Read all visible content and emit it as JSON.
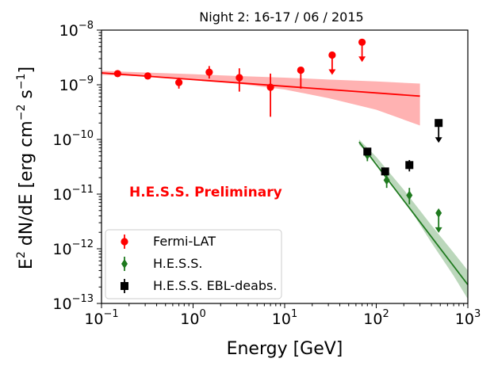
{
  "chart_data": {
    "type": "scatter",
    "title": "Night 2: 16-17 / 06 / 2015",
    "xlabel": "Energy [GeV]",
    "ylabel_parts": {
      "prefix": "E",
      "prefix_sup": "2",
      "mid": " dN/dE [erg cm",
      "cm_sup": "−2",
      "s": " s",
      "s_sup": "−1",
      "close": "]"
    },
    "xscale": "log",
    "yscale": "log",
    "xlim": [
      0.1,
      1000
    ],
    "ylim": [
      1e-13,
      1e-08
    ],
    "x_ticks": [
      {
        "value": 0.1,
        "base": "10",
        "exp": "−1"
      },
      {
        "value": 1,
        "base": "10",
        "exp": "0"
      },
      {
        "value": 10,
        "base": "10",
        "exp": "1"
      },
      {
        "value": 100,
        "base": "10",
        "exp": "2"
      },
      {
        "value": 1000,
        "base": "10",
        "exp": "3"
      }
    ],
    "y_ticks": [
      {
        "value": 1e-13,
        "base": "10",
        "exp": "−13"
      },
      {
        "value": 1e-12,
        "base": "10",
        "exp": "−12"
      },
      {
        "value": 1e-11,
        "base": "10",
        "exp": "−11"
      },
      {
        "value": 1e-10,
        "base": "10",
        "exp": "−10"
      },
      {
        "value": 1e-09,
        "base": "10",
        "exp": "−9"
      },
      {
        "value": 1e-08,
        "base": "10",
        "exp": "−8"
      }
    ],
    "annotation": "H.E.S.S. Preliminary",
    "legend_position": "lower-left",
    "series": [
      {
        "name": "Fermi-LAT",
        "color": "#ff0000",
        "marker": "circle",
        "points": [
          {
            "x": 0.15,
            "y": 1.6e-09,
            "ylo": 1.45e-09,
            "yhi": 1.75e-09
          },
          {
            "x": 0.32,
            "y": 1.45e-09,
            "ylo": 1.3e-09,
            "yhi": 1.6e-09
          },
          {
            "x": 0.7,
            "y": 1.1e-09,
            "ylo": 8.5e-10,
            "yhi": 1.35e-09
          },
          {
            "x": 1.5,
            "y": 1.7e-09,
            "ylo": 1.3e-09,
            "yhi": 2.2e-09
          },
          {
            "x": 3.2,
            "y": 1.35e-09,
            "ylo": 7.5e-10,
            "yhi": 2e-09
          },
          {
            "x": 7.0,
            "y": 9e-10,
            "ylo": 2.6e-10,
            "yhi": 1.6e-09
          },
          {
            "x": 15.0,
            "y": 1.85e-09,
            "ylo": 8.5e-10,
            "yhi": 1.85e-09
          }
        ],
        "upper_limits": [
          {
            "x": 33.0,
            "y": 3.5e-09
          },
          {
            "x": 70.0,
            "y": 6e-09
          }
        ],
        "model": {
          "x": [
            0.1,
            300
          ],
          "y": [
            1.65e-09,
            6.2e-10
          ]
        },
        "band": {
          "x": [
            0.1,
            0.3,
            1,
            3,
            10,
            30,
            100,
            300
          ],
          "lower": [
            1.52e-09,
            1.42e-09,
            1.27e-09,
            1.05e-09,
            8.2e-10,
            5.7e-10,
            3.5e-10,
            1.8e-10
          ],
          "upper": [
            1.8e-09,
            1.68e-09,
            1.56e-09,
            1.45e-09,
            1.35e-09,
            1.25e-09,
            1.15e-09,
            1.05e-09
          ]
        }
      },
      {
        "name": "H.E.S.S.",
        "color": "#1f7a1f",
        "marker": "diamond",
        "points": [
          {
            "x": 80,
            "y": 5.2e-11,
            "ylo": 4e-11,
            "yhi": 6.5e-11
          },
          {
            "x": 130,
            "y": 1.8e-11,
            "ylo": 1.3e-11,
            "yhi": 2.3e-11
          },
          {
            "x": 230,
            "y": 9.5e-12,
            "ylo": 6.5e-12,
            "yhi": 1.3e-11
          }
        ],
        "upper_limits": [
          {
            "x": 480,
            "y": 4.5e-12
          }
        ],
        "model": {
          "x": [
            65,
            1000
          ],
          "y": [
            9e-11,
            2.2e-13
          ]
        },
        "band": {
          "x": [
            65,
            100,
            200,
            400,
            700,
            1000
          ],
          "lower": [
            8e-11,
            3.8e-11,
            8e-12,
            1.3e-12,
            3.2e-13,
            1.2e-13
          ],
          "upper": [
            1e-10,
            4.8e-11,
            1.2e-11,
            2.7e-12,
            8.5e-13,
            4e-13
          ]
        }
      },
      {
        "name": "H.E.S.S. EBL-deabs.",
        "color": "#000000",
        "marker": "square",
        "points": [
          {
            "x": 80,
            "y": 6e-11,
            "ylo": 5.2e-11,
            "yhi": 6.8e-11
          },
          {
            "x": 125,
            "y": 2.6e-11,
            "ylo": 2.2e-11,
            "yhi": 3e-11
          },
          {
            "x": 230,
            "y": 3.4e-11,
            "ylo": 2.6e-11,
            "yhi": 4.2e-11
          }
        ],
        "upper_limits": [
          {
            "x": 480,
            "y": 2e-10
          }
        ]
      }
    ]
  }
}
